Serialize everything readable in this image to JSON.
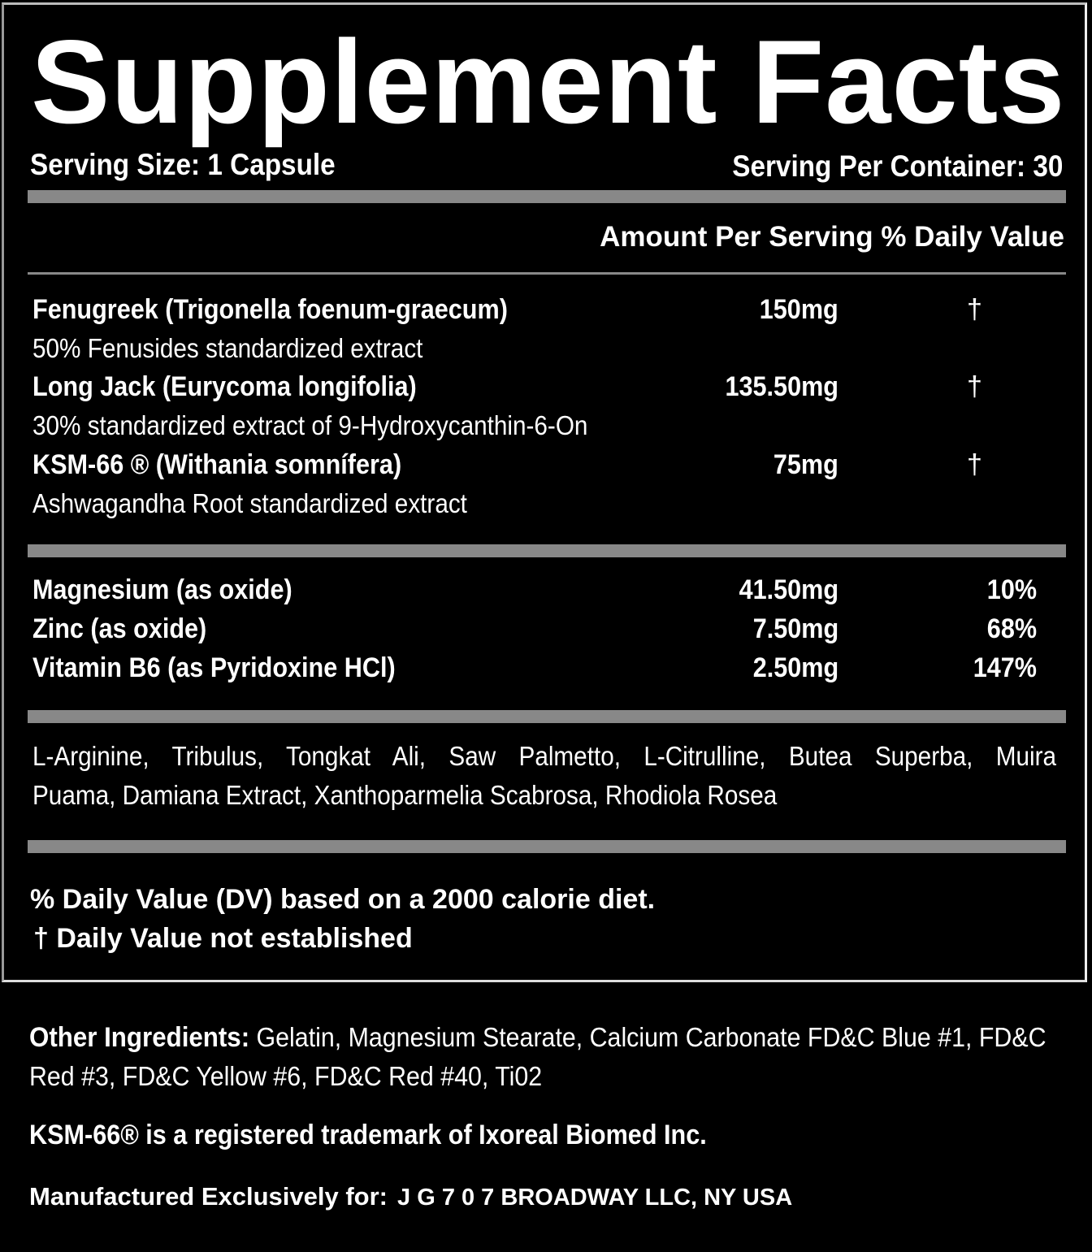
{
  "title": "Supplement Facts",
  "serving_size": "Serving Size: 1 Capsule",
  "servings_per_container": "Serving Per Container: 30",
  "column_header": "Amount Per Serving % Daily Value",
  "herbal_ingredients": [
    {
      "name": "Fenugreek (Trigonella foenum-graecum)",
      "detail": "50% Fenusides standardized extract",
      "amount": "150mg",
      "dv": "†"
    },
    {
      "name": "Long Jack (Eurycoma longifolia)",
      "detail": "30% standardized extract of 9-Hydroxycanthin-6-On",
      "amount": "135.50mg",
      "dv": "†"
    },
    {
      "name": "KSM-66 ® (Withania somnífera)",
      "detail": "Ashwagandha Root standardized extract",
      "amount": "75mg",
      "dv": "†"
    }
  ],
  "minerals": [
    {
      "name": "Magnesium (as oxide)",
      "amount": "41.50mg",
      "dv": "10%"
    },
    {
      "name": "Zinc (as oxide)",
      "amount": "7.50mg",
      "dv": "68%"
    },
    {
      "name": "Vitamin B6 (as Pyridoxine HCl)",
      "amount": "2.50mg",
      "dv": "147%"
    }
  ],
  "blend_line1": "L-Arginine, Tribulus, Tongkat Ali, Saw Palmetto, L-Citrulline, Butea Superba, Muira",
  "blend_line2": "Puama, Damiana Extract, Xanthoparmelia Scabrosa, Rhodiola Rosea",
  "footnote_dv": "% Daily Value (DV) based on a 2000 calorie diet.",
  "footnote_dagger": "† Daily Value not established",
  "other_ingredients_label": "Other Ingredients:",
  "other_ingredients": " Gelatin, Magnesium Stearate, Calcium Carbonate FD&C Blue #1, FD&C Red #3, FD&C Yellow #6, FD&C Red #40, Ti02",
  "trademark": "KSM-66® is a registered trademark of Ixoreal Biomed Inc.",
  "manufacturer_label": "Manufactured Exclusively for:",
  "manufacturer": "J G 7 0 7 BROADWAY LLC, NY USA",
  "colors": {
    "background": "#000000",
    "text": "#ffffff",
    "divider": "#888888"
  }
}
